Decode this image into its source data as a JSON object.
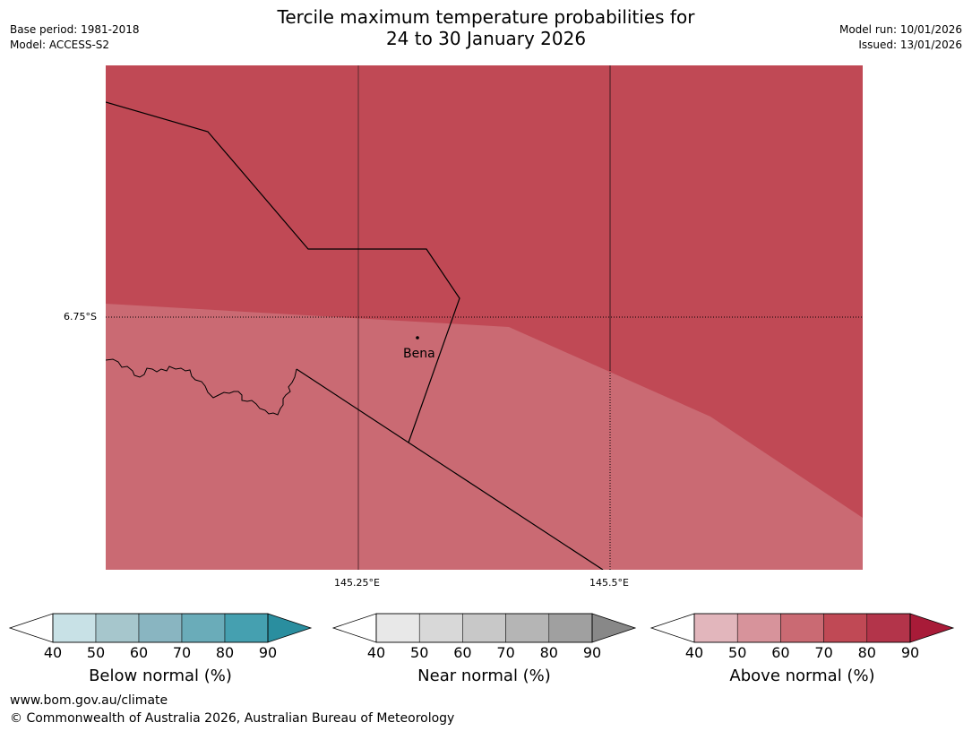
{
  "header": {
    "title_line1": "Tercile maximum temperature probabilities for",
    "title_line2": "24 to 30 January 2026",
    "base_period": "Base period: 1981-2018",
    "model": "Model: ACCESS-S2",
    "model_run": "Model run: 10/01/2026",
    "issued": "Issued: 13/01/2026"
  },
  "map": {
    "latitude_label": "6.75°S",
    "longitude_labels": [
      "145.25°E",
      "145.5°E"
    ],
    "place": {
      "name": "Bena",
      "icon": "location-dot-icon"
    },
    "colors": {
      "above_80": "#c04955",
      "above_70": "#ca6a73"
    }
  },
  "colorbars": [
    {
      "title": "Below normal (%)",
      "ticks": [
        "40",
        "50",
        "60",
        "70",
        "80",
        "90"
      ],
      "colors": [
        "#c8e1e6",
        "#a6c6cc",
        "#89b5c1",
        "#6aacb9",
        "#45a0b0",
        "#2a8e9f"
      ]
    },
    {
      "title": "Near normal (%)",
      "ticks": [
        "40",
        "50",
        "60",
        "70",
        "80",
        "90"
      ],
      "colors": [
        "#e8e8e8",
        "#d8d8d8",
        "#c8c8c8",
        "#b5b5b5",
        "#a0a0a0",
        "#888888"
      ]
    },
    {
      "title": "Above normal (%)",
      "ticks": [
        "40",
        "50",
        "60",
        "70",
        "80",
        "90"
      ],
      "colors": [
        "#e2b6bc",
        "#d7939b",
        "#ca6a73",
        "#c04955",
        "#b3344a",
        "#a81b38"
      ]
    }
  ],
  "footer": {
    "url": "www.bom.gov.au/climate",
    "copyright": "© Commonwealth of Australia 2026, Australian Bureau of Meteorology"
  }
}
